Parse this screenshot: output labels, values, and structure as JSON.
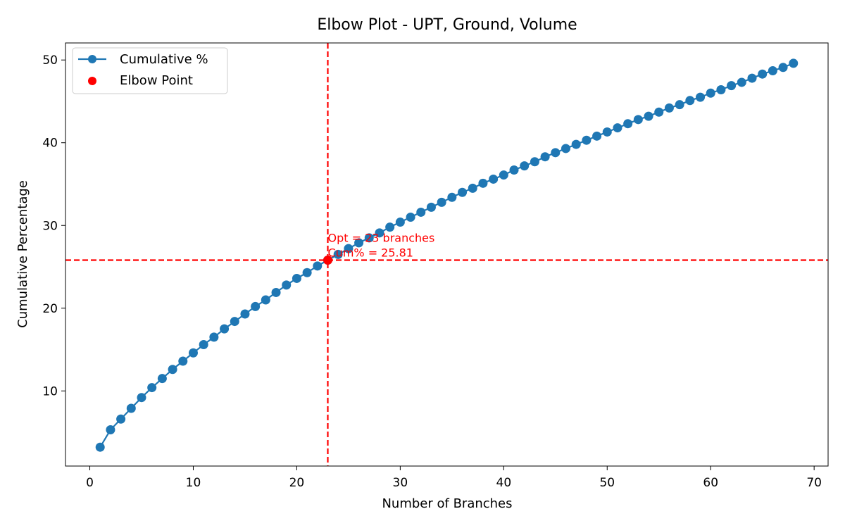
{
  "chart_data": {
    "type": "line",
    "title": "Elbow Plot - UPT, Ground, Volume",
    "xlabel": "Number of Branches",
    "ylabel": "Cumulative Percentage",
    "xlim": [
      -2.35,
      71.35
    ],
    "ylim": [
      0.92,
      52.06
    ],
    "xticks": [
      0,
      10,
      20,
      30,
      40,
      50,
      60,
      70
    ],
    "yticks": [
      10,
      20,
      30,
      40,
      50
    ],
    "grid": false,
    "legend_position": "upper-left",
    "series": [
      {
        "name": "Cumulative %",
        "color": "#1f77b4",
        "marker": "circle",
        "x": [
          1,
          2,
          3,
          4,
          5,
          6,
          7,
          8,
          9,
          10,
          11,
          12,
          13,
          14,
          15,
          16,
          17,
          18,
          19,
          20,
          21,
          22,
          23,
          24,
          25,
          26,
          27,
          28,
          29,
          30,
          31,
          32,
          33,
          34,
          35,
          36,
          37,
          38,
          39,
          40,
          41,
          42,
          43,
          44,
          45,
          46,
          47,
          48,
          49,
          50,
          51,
          52,
          53,
          54,
          55,
          56,
          57,
          58,
          59,
          60,
          61,
          62,
          63,
          64,
          65,
          66,
          67,
          68
        ],
        "y": [
          3.2,
          5.3,
          6.6,
          7.9,
          9.2,
          10.4,
          11.5,
          12.6,
          13.6,
          14.6,
          15.6,
          16.5,
          17.5,
          18.4,
          19.3,
          20.2,
          21.0,
          21.9,
          22.8,
          23.6,
          24.3,
          25.1,
          25.81,
          26.5,
          27.2,
          27.9,
          28.5,
          29.1,
          29.8,
          30.4,
          31.0,
          31.6,
          32.2,
          32.8,
          33.4,
          34.0,
          34.5,
          35.1,
          35.6,
          36.1,
          36.7,
          37.2,
          37.7,
          38.3,
          38.8,
          39.3,
          39.8,
          40.3,
          40.8,
          41.3,
          41.8,
          42.3,
          42.8,
          43.2,
          43.7,
          44.2,
          44.6,
          45.1,
          45.5,
          46.0,
          46.4,
          46.9,
          47.3,
          47.8,
          48.3,
          48.7,
          49.1,
          49.6
        ]
      },
      {
        "name": "Elbow Point",
        "color": "#ff0000",
        "marker": "circle",
        "x": [
          23
        ],
        "y": [
          25.81
        ]
      }
    ],
    "reference_lines": {
      "vertical_x": 23,
      "horizontal_y": 25.81,
      "color": "#ff0000",
      "style": "dashed"
    },
    "annotation": {
      "line1": "Opt = 23 branches",
      "line2": "Cum% = 25.81",
      "x": 23,
      "y": 25.81,
      "color": "#ff0000"
    }
  }
}
